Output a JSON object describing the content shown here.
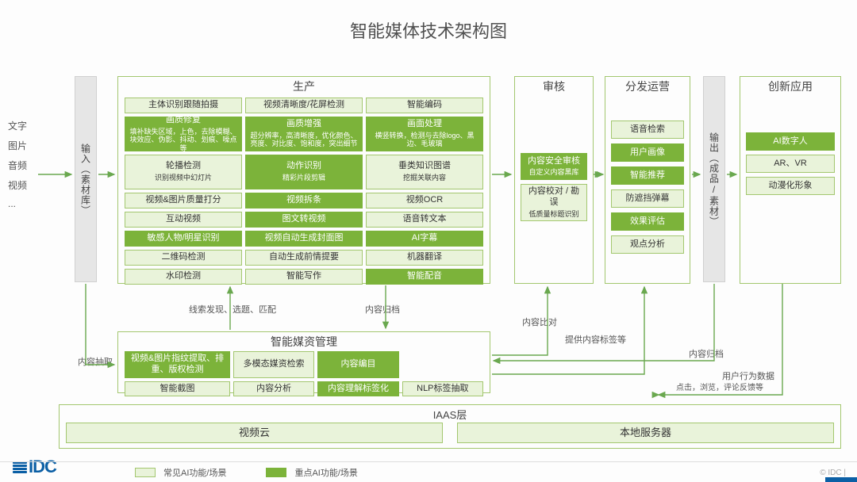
{
  "title": "智能媒体技术架构图",
  "input_types": [
    "文字",
    "图片",
    "音频",
    "视频",
    "..."
  ],
  "input_label": "输入（素材库）",
  "output_label": "输出（成品/素材）",
  "stages": {
    "production": {
      "title": "生产",
      "cells": [
        {
          "t": "主体识别跟随拍摄",
          "s": "light"
        },
        {
          "t": "视频清晰度/花屏检测",
          "s": "light"
        },
        {
          "t": "智能编码",
          "s": "light"
        },
        {
          "t": "画质修复",
          "sub": "填补缺失区域，上色，去除模糊、块效应、伪影、抖动、划痕、噪点等",
          "s": "dark",
          "tall": true
        },
        {
          "t": "画质增强",
          "sub": "超分辨率，高清晰度，优化颜色、亮度、对比度、饱和度，突出细节",
          "s": "dark",
          "tall": true
        },
        {
          "t": "画面处理",
          "sub": "横竖转换，检测与去除logo、黑边、毛玻璃",
          "s": "dark",
          "tall": true
        },
        {
          "t": "轮播检测",
          "sub": "识别视频中幻灯片",
          "s": "light",
          "tall": true
        },
        {
          "t": "动作识别",
          "sub": "精彩片段剪辑",
          "s": "dark",
          "tall": true
        },
        {
          "t": "垂类知识图谱",
          "sub": "挖掘关联内容",
          "s": "light",
          "tall": true
        },
        {
          "t": "视频&图片质量打分",
          "s": "light"
        },
        {
          "t": "视频拆条",
          "s": "dark"
        },
        {
          "t": "视频OCR",
          "s": "light"
        },
        {
          "t": "互动视频",
          "s": "light"
        },
        {
          "t": "图文转视频",
          "s": "dark"
        },
        {
          "t": "语音转文本",
          "s": "light"
        },
        {
          "t": "敏感人物/明星识别",
          "s": "dark"
        },
        {
          "t": "视频自动生成封面图",
          "s": "dark"
        },
        {
          "t": "AI字幕",
          "s": "dark"
        },
        {
          "t": "二维码检测",
          "s": "light"
        },
        {
          "t": "自动生成前情提要",
          "s": "light"
        },
        {
          "t": "机器翻译",
          "s": "light"
        },
        {
          "t": "水印检测",
          "s": "light"
        },
        {
          "t": "智能写作",
          "s": "light"
        },
        {
          "t": "智能配音",
          "s": "dark"
        }
      ]
    },
    "management": {
      "title": "智能媒资管理",
      "cells": [
        {
          "t": "视频&图片指纹提取、排重、版权检测",
          "s": "dark"
        },
        {
          "t": "多模态媒资检索",
          "s": "light"
        },
        {
          "t": "内容编目",
          "s": "dark"
        },
        {
          "t": "",
          "s": "none"
        },
        {
          "t": "智能截图",
          "s": "light"
        },
        {
          "t": "内容分析",
          "s": "light"
        },
        {
          "t": "内容理解标签化",
          "s": "dark"
        },
        {
          "t": "NLP标签抽取",
          "s": "light"
        }
      ]
    },
    "audit": {
      "title": "审核",
      "cells": [
        {
          "t": "内容安全审核",
          "sub": "自定义内容黑库",
          "s": "dark"
        },
        {
          "t": "内容校对 / 勘误",
          "sub": "低质量标题识别",
          "s": "light"
        }
      ]
    },
    "distribute": {
      "title": "分发运营",
      "cells": [
        {
          "t": "语音检索",
          "s": "light"
        },
        {
          "t": "用户画像",
          "s": "dark"
        },
        {
          "t": "智能推荐",
          "s": "dark"
        },
        {
          "t": "防遮挡弹幕",
          "s": "light"
        },
        {
          "t": "效果评估",
          "s": "dark"
        },
        {
          "t": "观点分析",
          "s": "light"
        }
      ]
    },
    "innovate": {
      "title": "创新应用",
      "cells": [
        {
          "t": "AI数字人",
          "s": "dark"
        },
        {
          "t": "AR、VR",
          "s": "light"
        },
        {
          "t": "动漫化形象",
          "s": "light"
        }
      ]
    },
    "iaas": {
      "title": "IAAS层",
      "cells": [
        {
          "t": "视频云",
          "s": "light"
        },
        {
          "t": "本地服务器",
          "s": "light"
        }
      ]
    }
  },
  "arrows": {
    "a1": "内容抽取",
    "a2": "线索发现、选题、匹配",
    "a3": "内容归档",
    "a4": "内容比对",
    "a5": "提供内容标签等",
    "a6": "内容归档",
    "a7": "用户行为数据",
    "a7b": "点击，浏览，评论反馈等"
  },
  "legend": {
    "common": "常见AI功能/场景",
    "key": "重点AI功能/场景"
  },
  "footer_brand": "IDC",
  "footer_copy": "© IDC  |"
}
